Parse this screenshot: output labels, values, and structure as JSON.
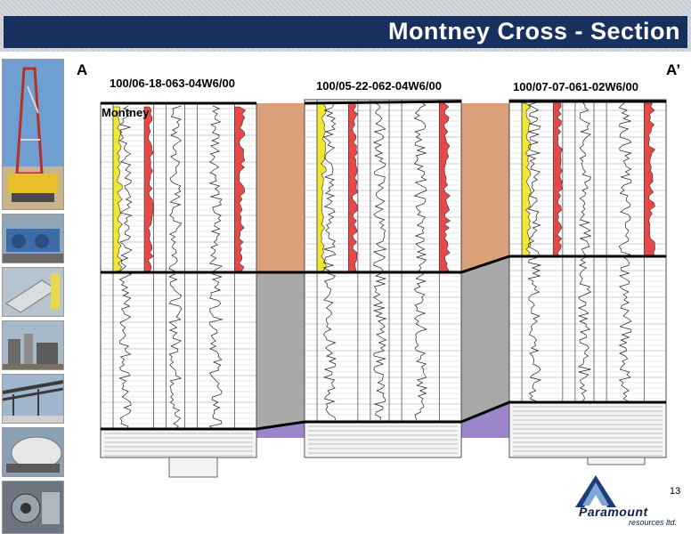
{
  "slide": {
    "title": "Montney Cross - Section",
    "page_number": "13"
  },
  "section": {
    "start_label": "A",
    "end_label": "A’",
    "formation_label": "Montney"
  },
  "wells": [
    {
      "name": "100/06-18-063-04W6/00"
    },
    {
      "name": "100/05-22-062-04W6/00"
    },
    {
      "name": "100/07-07-061-02W6/00"
    }
  ],
  "logo": {
    "name": "Paramount",
    "subtitle": "resources ltd."
  },
  "colors": {
    "title_bar": "#17305e",
    "gamma_ray_fill": "#f0e832",
    "resistivity_fill": "#e84848",
    "montney_fill": "#d9a07a",
    "lower_unit_fill": "#a8a8a8",
    "base_fill": "#9a86c8"
  },
  "sidebar_photos": [
    {
      "icon": "drilling-rig-photo"
    },
    {
      "icon": "compressor-photo"
    },
    {
      "icon": "tank-photo"
    },
    {
      "icon": "plant-photo"
    },
    {
      "icon": "pipe-rack-photo"
    },
    {
      "icon": "vessel-photo"
    },
    {
      "icon": "machinery-photo"
    }
  ]
}
